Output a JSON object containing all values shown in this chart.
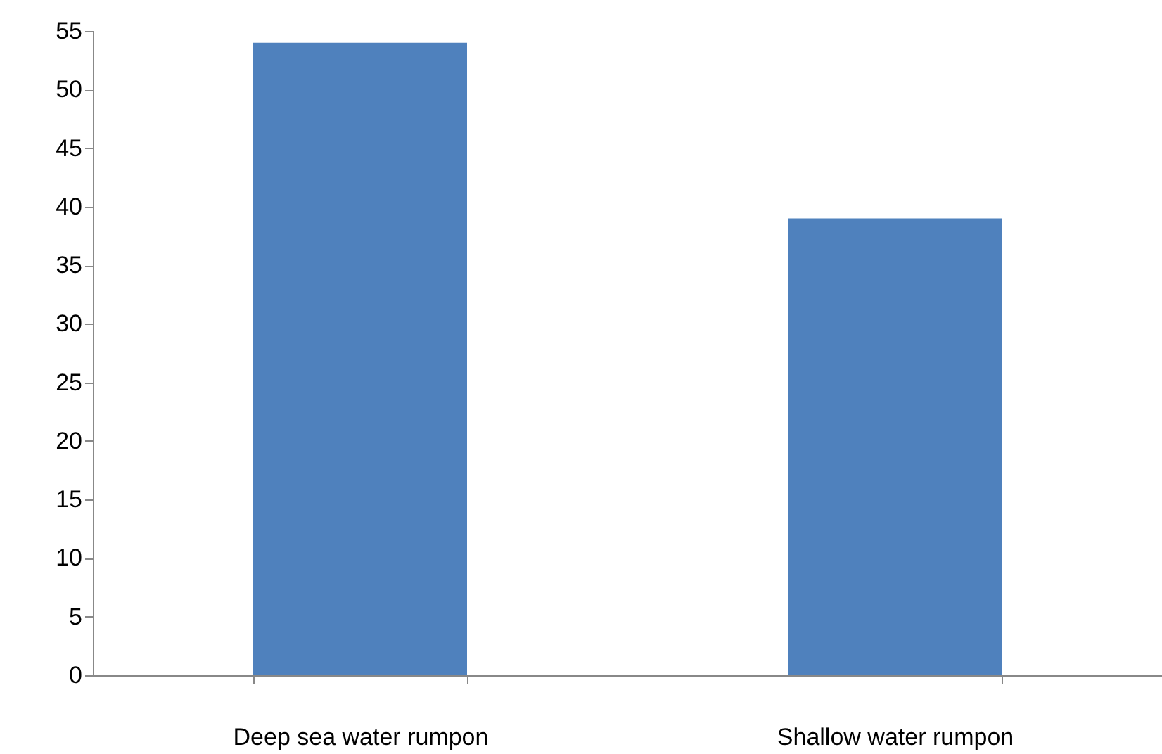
{
  "chart_data": {
    "type": "bar",
    "categories": [
      "Deep sea water rumpon",
      "Shallow water rumpon"
    ],
    "values": [
      54,
      39
    ],
    "color": "#4f81bd",
    "ylim": [
      0,
      55
    ],
    "yticks": [
      0,
      5,
      10,
      15,
      20,
      25,
      30,
      35,
      40,
      45,
      50,
      55
    ],
    "grid": false
  }
}
